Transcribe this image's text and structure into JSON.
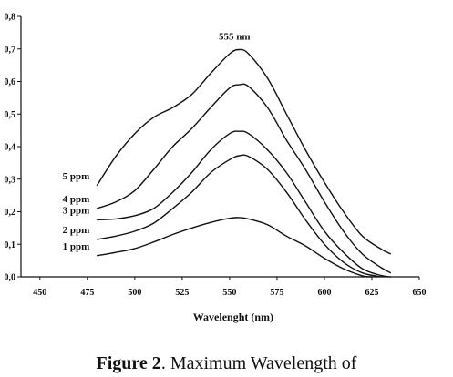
{
  "chart_data": {
    "type": "line",
    "title": "",
    "xlabel": "Wavelenght  (nm)",
    "ylabel": "",
    "xlim": [
      440,
      650
    ],
    "ylim": [
      0.0,
      0.8
    ],
    "x_ticks": [
      450,
      475,
      500,
      525,
      550,
      575,
      600,
      625,
      650
    ],
    "x_tick_labels": [
      "450",
      "475",
      "500",
      "525",
      "550",
      "575",
      "600",
      "625",
      "650"
    ],
    "y_ticks": [
      0.0,
      0.1,
      0.2,
      0.3,
      0.4,
      0.5,
      0.6,
      0.7,
      0.8
    ],
    "y_tick_labels": [
      "0,0",
      "0,1",
      "0,2",
      "0,3",
      "0,4",
      "0,5",
      "0,6",
      "0,7",
      "0,8"
    ],
    "grid": false,
    "annotation": {
      "text": "555 nm",
      "x": 555,
      "y": 0.72
    },
    "series": [
      {
        "name": "1 ppm",
        "x": [
          480,
          490,
          500,
          510,
          520,
          530,
          540,
          550,
          555,
          560,
          570,
          580,
          590,
          600,
          610,
          620,
          625
        ],
        "y": [
          0.065,
          0.075,
          0.087,
          0.107,
          0.13,
          0.15,
          0.167,
          0.18,
          0.182,
          0.178,
          0.16,
          0.125,
          0.095,
          0.057,
          0.025,
          0.003,
          0.0
        ]
      },
      {
        "name": "2 ppm",
        "x": [
          480,
          490,
          500,
          510,
          520,
          530,
          540,
          550,
          555,
          560,
          570,
          580,
          590,
          600,
          610,
          620,
          630
        ],
        "y": [
          0.115,
          0.125,
          0.14,
          0.165,
          0.21,
          0.26,
          0.32,
          0.36,
          0.372,
          0.37,
          0.33,
          0.26,
          0.175,
          0.1,
          0.045,
          0.012,
          0.0
        ]
      },
      {
        "name": "3 ppm",
        "x": [
          480,
          490,
          500,
          510,
          520,
          530,
          540,
          550,
          555,
          560,
          570,
          580,
          590,
          600,
          610,
          620,
          630,
          635
        ],
        "y": [
          0.175,
          0.178,
          0.188,
          0.21,
          0.26,
          0.32,
          0.39,
          0.44,
          0.447,
          0.44,
          0.39,
          0.32,
          0.23,
          0.14,
          0.075,
          0.025,
          0.004,
          0.0
        ]
      },
      {
        "name": "4 ppm",
        "x": [
          480,
          490,
          500,
          510,
          520,
          530,
          540,
          550,
          555,
          560,
          570,
          580,
          590,
          600,
          610,
          620,
          630,
          635
        ],
        "y": [
          0.21,
          0.23,
          0.265,
          0.33,
          0.4,
          0.455,
          0.52,
          0.58,
          0.59,
          0.585,
          0.52,
          0.42,
          0.33,
          0.23,
          0.14,
          0.07,
          0.028,
          0.012
        ]
      },
      {
        "name": "5 ppm",
        "x": [
          480,
          490,
          500,
          510,
          520,
          530,
          540,
          550,
          555,
          560,
          570,
          580,
          590,
          600,
          610,
          620,
          630,
          635
        ],
        "y": [
          0.28,
          0.37,
          0.44,
          0.49,
          0.52,
          0.56,
          0.625,
          0.685,
          0.698,
          0.685,
          0.61,
          0.5,
          0.39,
          0.29,
          0.2,
          0.125,
          0.085,
          0.07
        ]
      }
    ]
  },
  "caption": {
    "bold": "Figure 2",
    "rest": ". Maximum Wavelength of"
  }
}
